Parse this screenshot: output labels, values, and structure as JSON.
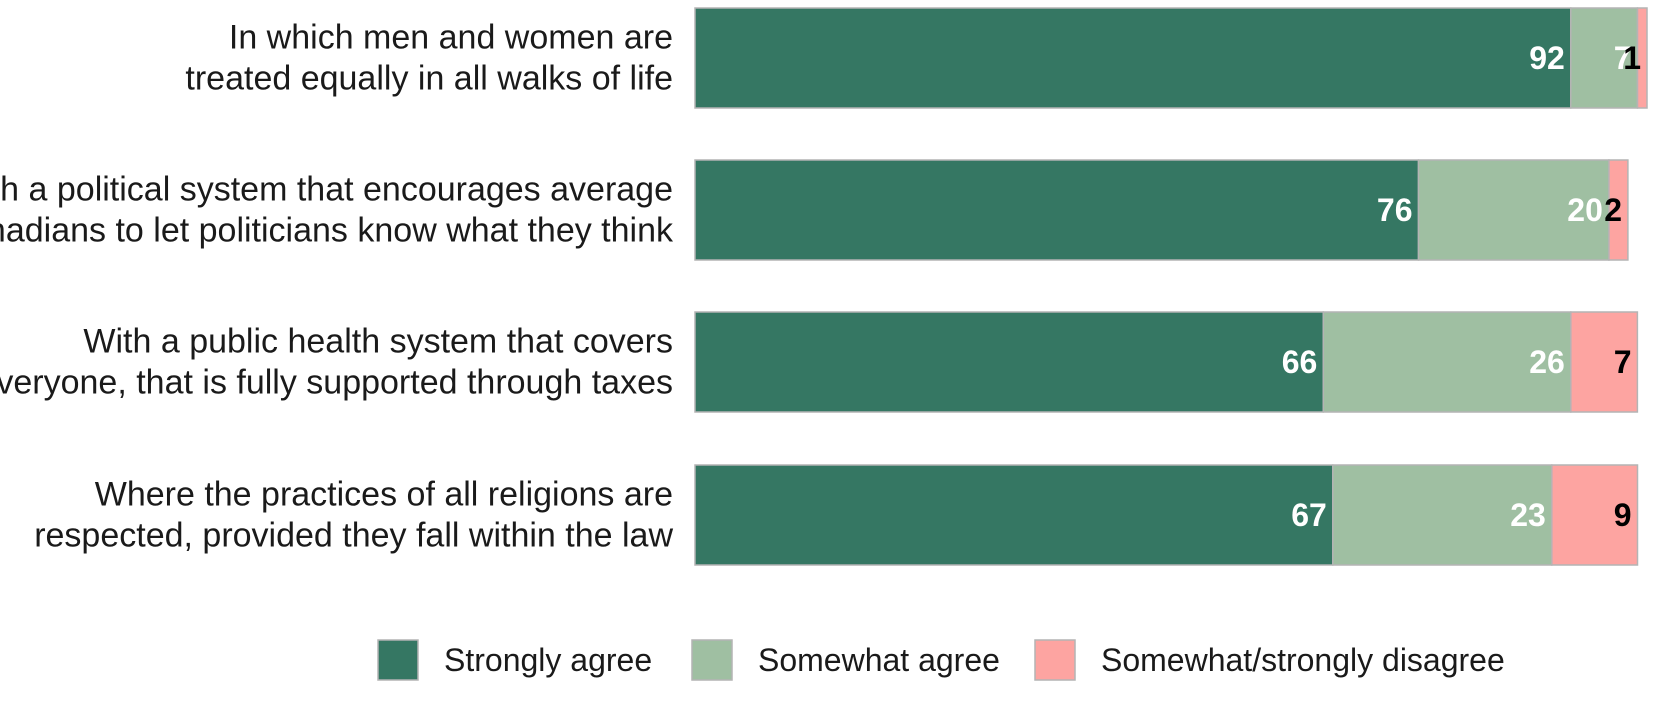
{
  "chart_data": {
    "type": "bar",
    "orientation": "horizontal",
    "stacked": true,
    "xlim": [
      0,
      100
    ],
    "categories": [
      [
        "In which men and women are",
        "treated equally in all walks of life"
      ],
      [
        "With a political system that encourages average",
        "Canadians to let politicians know what they think"
      ],
      [
        "With a public health system that covers",
        "everyone, that is fully supported through taxes"
      ],
      [
        "Where the practices of all religions are",
        "respected, provided they fall within the law"
      ]
    ],
    "series": [
      {
        "name": "Strongly agree",
        "color": "#357763",
        "label_color": "#ffffff",
        "values": [
          92,
          76,
          66,
          67
        ]
      },
      {
        "name": "Somewhat agree",
        "color": "#9fbfa2",
        "label_color": "#ffffff",
        "values": [
          7,
          20,
          26,
          23
        ]
      },
      {
        "name": "Somewhat/strongly disagree",
        "color": "#fda4a1",
        "label_color": "#000000",
        "values": [
          1,
          2,
          7,
          9
        ]
      }
    ],
    "legend_position": "bottom",
    "grid": false
  }
}
